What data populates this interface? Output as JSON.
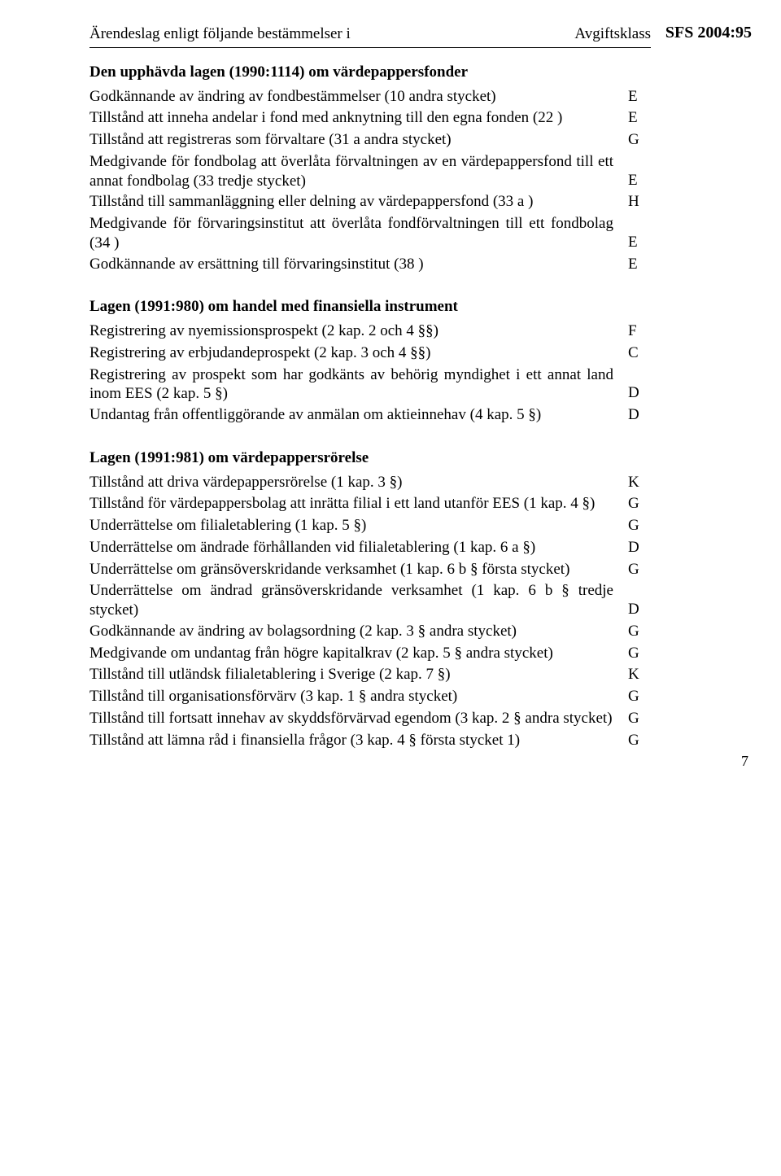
{
  "sfs_ref": "SFS 2004:95",
  "header": {
    "left": "Ärendeslag enligt följande bestämmelser i",
    "right": "Avgiftsklass"
  },
  "sections": [
    {
      "title": "Den upphävda lagen (1990:1114) om värdepappersfonder",
      "rows": [
        {
          "text": "Godkännande av ändring av fondbestämmelser (10 andra stycket)",
          "cls": "E"
        },
        {
          "text": "Tillstånd att inneha andelar i fond med anknytning till den egna fonden (22 )",
          "cls": "E"
        },
        {
          "text": "Tillstånd att registreras som förvaltare (31 a  andra stycket)",
          "cls": "G"
        },
        {
          "text": "Medgivande för fondbolag att överlåta förvaltningen av en värdepappersfond till ett annat fondbolag (33 tredje stycket)",
          "cls": "E"
        },
        {
          "text": "Tillstånd till sammanläggning eller delning av värdepappersfond (33 a )",
          "cls": "H"
        },
        {
          "text": "Medgivande för förvaringsinstitut att överlåta fondförvaltningen till ett fondbolag (34 )",
          "cls": "E"
        },
        {
          "text": "Godkännande av ersättning till förvaringsinstitut (38 )",
          "cls": "E"
        }
      ]
    },
    {
      "title": "Lagen (1991:980) om handel med finansiella instrument",
      "rows": [
        {
          "text": "Registrering av nyemissionsprospekt (2 kap. 2 och 4 §§)",
          "cls": "F"
        },
        {
          "text": "Registrering av erbjudandeprospekt (2 kap. 3 och 4 §§)",
          "cls": "C"
        },
        {
          "text": "Registrering av prospekt som har godkänts av behörig myndighet i ett annat land inom EES (2 kap. 5 §)",
          "cls": "D"
        },
        {
          "text": "Undantag från offentliggörande av anmälan om aktieinnehav (4 kap. 5 §)",
          "cls": "D"
        }
      ]
    },
    {
      "title": "Lagen (1991:981) om värdepappersrörelse",
      "rows": [
        {
          "text": "Tillstånd att driva värdepappersrörelse (1 kap. 3 §)",
          "cls": "K"
        },
        {
          "text": "Tillstånd för värdepappersbolag att inrätta filial i ett land utanför EES (1 kap. 4 §)",
          "cls": "G"
        },
        {
          "text": "Underrättelse om filialetablering (1 kap. 5 §)",
          "cls": "G"
        },
        {
          "text": "Underrättelse om ändrade förhållanden vid filialetablering (1 kap. 6 a §)",
          "cls": "D"
        },
        {
          "text": "Underrättelse om gränsöverskridande verksamhet (1 kap. 6 b § första stycket)",
          "cls": "G"
        },
        {
          "text": "Underrättelse om ändrad gränsöverskridande verksamhet (1 kap. 6 b § tredje stycket)",
          "cls": "D"
        },
        {
          "text": "Godkännande av ändring av bolagsordning (2 kap. 3 § andra stycket)",
          "cls": "G"
        },
        {
          "text": "Medgivande om undantag från högre kapitalkrav (2 kap. 5 § andra stycket)",
          "cls": "G"
        },
        {
          "text": "Tillstånd till utländsk filialetablering i Sverige (2 kap. 7 §)",
          "cls": "K"
        },
        {
          "text": "Tillstånd till organisationsförvärv (3 kap. 1 § andra stycket)",
          "cls": "G"
        },
        {
          "text": "Tillstånd till fortsatt innehav av skyddsförvärvad egendom (3 kap. 2 § andra stycket)",
          "cls": "G"
        },
        {
          "text": "Tillstånd att lämna råd i finansiella frågor (3 kap. 4 § första stycket 1)",
          "cls": "G"
        }
      ]
    }
  ],
  "page_number": "7"
}
